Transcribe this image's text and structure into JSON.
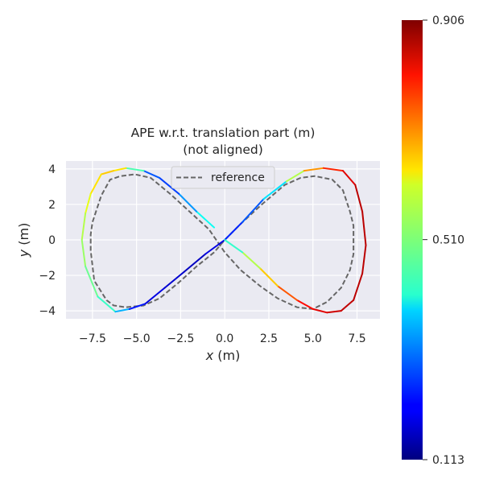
{
  "chart_data": {
    "type": "line",
    "title": "APE w.r.t. translation part (m)",
    "subtitle": "(not aligned)",
    "xlabel_var": "x",
    "xlabel_unit": " (m)",
    "ylabel_var": "y",
    "ylabel_unit": " (m)",
    "xlim": [
      -9.0,
      8.8
    ],
    "ylim": [
      -4.45,
      4.45
    ],
    "xticks": [
      -7.5,
      -5.0,
      -2.5,
      0.0,
      2.5,
      5.0,
      7.5
    ],
    "xtick_labels": [
      "−7.5",
      "−5.0",
      "−2.5",
      "0.0",
      "2.5",
      "5.0",
      "7.5"
    ],
    "yticks": [
      -4,
      -2,
      0,
      2,
      4
    ],
    "ytick_labels": [
      "−4",
      "−2",
      "0",
      "2",
      "4"
    ],
    "grid": true,
    "legend": {
      "entries": [
        "reference"
      ],
      "placement": "top-center"
    },
    "colorbar": {
      "min": 0.113,
      "max": 0.906,
      "ticks": [
        0.113,
        0.51,
        0.906
      ],
      "tick_labels": [
        "0.113",
        "0.510",
        "0.906"
      ],
      "colormap": "jet"
    },
    "series": [
      {
        "name": "reference",
        "style": "dashed",
        "color": "#666666",
        "x": [
          0.0,
          0.9,
          2.1,
          3.4,
          4.3,
          5.1,
          6.1,
          6.7,
          7.1,
          7.3,
          7.3,
          7.1,
          6.6,
          5.8,
          5.0,
          4.1,
          3.0,
          2.0,
          0.9,
          0.0,
          -0.9,
          -2.0,
          -3.1,
          -4.2,
          -5.1,
          -5.9,
          -6.5,
          -7.0,
          -7.5,
          -7.6,
          -7.6,
          -7.4,
          -6.7,
          -6.3,
          -5.6,
          -4.6,
          -3.7,
          -2.6,
          -1.6,
          -0.6,
          0.0
        ],
        "y": [
          0.0,
          0.9,
          2.0,
          3.1,
          3.5,
          3.6,
          3.4,
          2.8,
          1.6,
          0.8,
          -0.8,
          -1.7,
          -2.7,
          -3.5,
          -3.9,
          -3.8,
          -3.3,
          -2.6,
          -1.7,
          -0.7,
          0.6,
          1.6,
          2.6,
          3.5,
          3.7,
          3.6,
          3.4,
          2.5,
          1.0,
          0.3,
          -0.6,
          -2.3,
          -3.4,
          -3.7,
          -3.8,
          -3.7,
          -3.3,
          -2.4,
          -1.5,
          -0.7,
          0.0
        ]
      },
      {
        "name": "",
        "style": "colored by APE",
        "x": [
          -0.6,
          -1.6,
          -2.6,
          -3.7,
          -4.6,
          -5.6,
          -6.3,
          -7.0,
          -7.6,
          -7.9,
          -8.1,
          -7.9,
          -7.2,
          -6.2,
          -5.4,
          -4.5,
          -3.4,
          -2.3,
          -1.1,
          0.0,
          1.0,
          2.2,
          3.5,
          4.5,
          5.6,
          6.7,
          7.4,
          7.8,
          8.0,
          7.8,
          7.3,
          6.6,
          5.8,
          5.0,
          4.1,
          3.0,
          2.0,
          1.0,
          0.0
        ],
        "y": [
          0.7,
          1.6,
          2.6,
          3.5,
          3.9,
          4.05,
          3.9,
          3.7,
          2.6,
          1.5,
          0.0,
          -1.5,
          -3.2,
          -4.05,
          -3.9,
          -3.6,
          -2.7,
          -1.8,
          -0.8,
          0.0,
          1.0,
          2.3,
          3.3,
          3.9,
          4.05,
          3.9,
          3.1,
          1.6,
          -0.3,
          -1.9,
          -3.4,
          -4.0,
          -4.1,
          -3.9,
          -3.4,
          -2.6,
          -1.6,
          -0.7,
          0.0
        ],
        "ape": [
          0.48,
          0.36,
          0.3,
          0.22,
          0.34,
          0.6,
          0.66,
          0.64,
          0.62,
          0.56,
          0.54,
          0.52,
          0.47,
          0.44,
          0.26,
          0.2,
          0.18,
          0.17,
          0.16,
          0.22,
          0.26,
          0.3,
          0.48,
          0.62,
          0.76,
          0.8,
          0.86,
          0.86,
          0.86,
          0.86,
          0.86,
          0.85,
          0.84,
          0.82,
          0.78,
          0.7,
          0.6,
          0.5,
          0.4
        ]
      }
    ]
  }
}
